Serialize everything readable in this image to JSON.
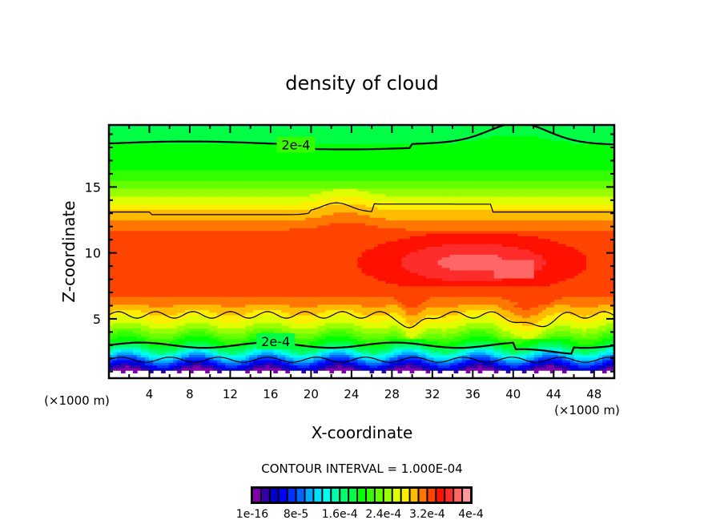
{
  "chart_data": {
    "type": "heatmap",
    "subtype": "filled-contour",
    "title": "density of cloud",
    "xlabel": "X-coordinate",
    "ylabel": "Z-coordinate",
    "x_unit_label": "(×1000 m)",
    "y_unit_label": "(×1000 m)",
    "xlim": [
      0,
      50
    ],
    "ylim": [
      0.5,
      19.7
    ],
    "x_ticks": [
      4,
      8,
      12,
      16,
      20,
      24,
      28,
      32,
      36,
      40,
      44,
      48
    ],
    "x_tick_labels": [
      "4",
      "8",
      "12",
      "16",
      "20",
      "24",
      "28",
      "32",
      "36",
      "40",
      "44",
      "48"
    ],
    "y_ticks": [
      5,
      10,
      15
    ],
    "y_tick_labels": [
      "5",
      "10",
      "15"
    ],
    "contour_interval_label": "CONTOUR INTERVAL = 1.000E-04",
    "contour_interval": 0.0001,
    "contour_labels": [
      {
        "text": "2e-4",
        "x": 18.5,
        "z": 18.2
      },
      {
        "text": "2e-4",
        "x": 16.5,
        "z": 3.3
      }
    ],
    "colorbar": {
      "min": 1e-16,
      "max": 0.0004,
      "tick_labels": [
        "1e-16",
        "8e-5",
        "1.6e-4",
        "2.4e-4",
        "3.2e-4",
        "4e-4"
      ],
      "colors": [
        "#7f00aa",
        "#3300aa",
        "#0000cc",
        "#0000ff",
        "#0033ff",
        "#0066ff",
        "#00aaff",
        "#00ddff",
        "#00ffee",
        "#00ffaa",
        "#00ff66",
        "#00ff44",
        "#00ff00",
        "#33ff00",
        "#66ff00",
        "#99ff00",
        "#ddff00",
        "#ffee00",
        "#ffbb00",
        "#ff7700",
        "#ff4400",
        "#ff1100",
        "#ff2c2c",
        "#ff6666",
        "#ff9999"
      ]
    },
    "field_profile": {
      "description": "Horizontally layered cloud density; low values near ground, peak 3.2e-4 to 4e-4 between z=7 and z=12, decreasing above to ~1.6e-4 at z=19",
      "peak_value_region": {
        "x": [
          38,
          42
        ],
        "z": [
          8,
          9.5
        ]
      },
      "levels_z": [
        {
          "value": 0.0,
          "z": 0.9
        },
        {
          "value": 4e-05,
          "z": 1.4
        },
        {
          "value": 0.0001,
          "z": 2.0
        },
        {
          "value": 0.00016,
          "z": 2.6
        },
        {
          "value": 0.0002,
          "z": 3.1
        },
        {
          "value": 0.00026,
          "z": 4.3
        },
        {
          "value": 0.0003,
          "z": 5.5
        },
        {
          "value": 0.00034,
          "z": 7.0
        },
        {
          "value": 0.00034,
          "z": 11.5
        },
        {
          "value": 0.0003,
          "z": 13.2
        },
        {
          "value": 0.00026,
          "z": 14.5
        },
        {
          "value": 0.00022,
          "z": 16.0
        },
        {
          "value": 0.0002,
          "z": 18.3
        },
        {
          "value": 0.00018,
          "z": 19.7
        }
      ]
    }
  }
}
